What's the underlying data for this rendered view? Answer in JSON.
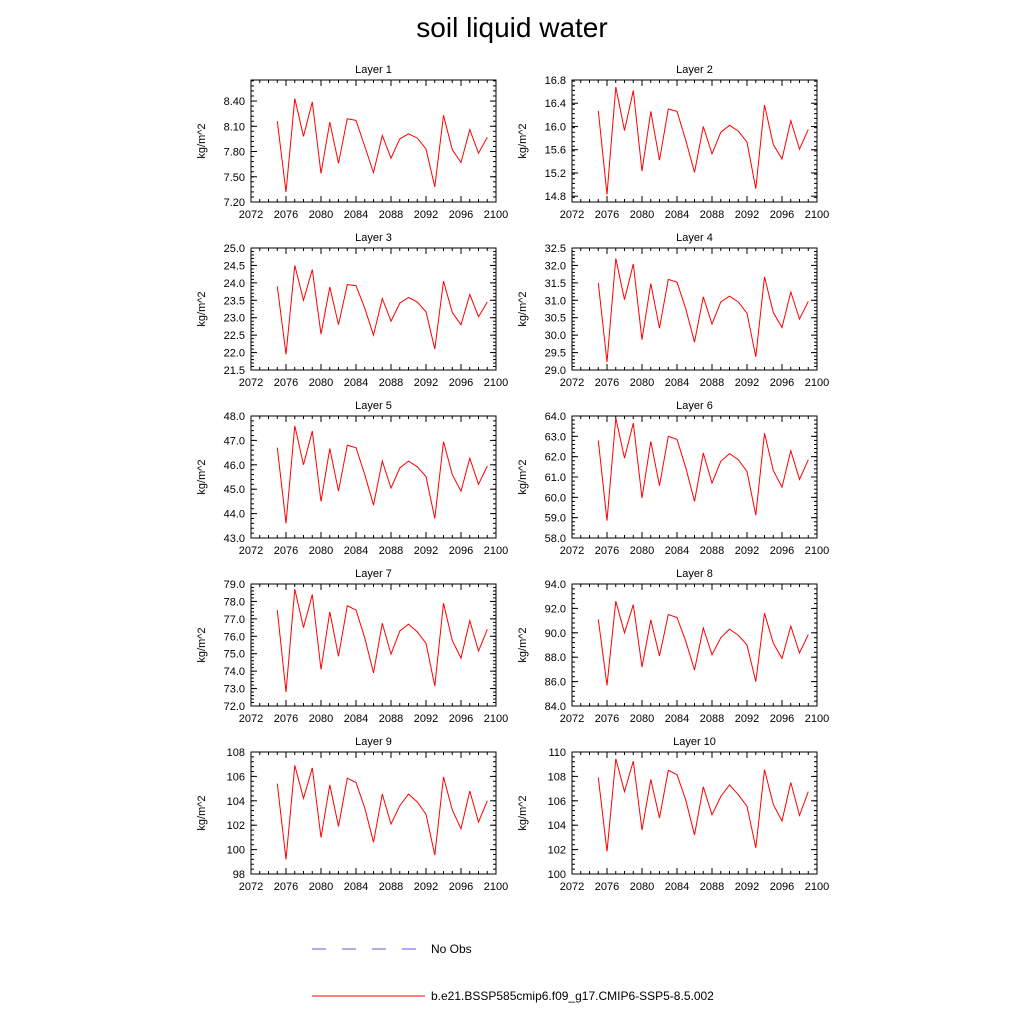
{
  "title": "soil liquid water",
  "legend": {
    "obs_label": "No Obs",
    "obs_color": "#5b5bd6",
    "model_label": "b.e21.BSSP585cmip6.f09_g17.CMIP6-SSP5-8.5.002",
    "model_color": "#ff0000"
  },
  "chart_data": [
    {
      "type": "line",
      "title": "Layer 1",
      "ylabel": "kg/m^2",
      "xlim": [
        2072,
        2100
      ],
      "ylim": [
        7.2,
        8.65
      ],
      "xticks": [
        2072,
        2076,
        2080,
        2084,
        2088,
        2092,
        2096,
        2100
      ],
      "yticks": [
        "7.20",
        "7.50",
        "7.80",
        "8.10",
        "8.40"
      ],
      "series": [
        {
          "x": [
            2075,
            2076,
            2077,
            2078,
            2079,
            2080,
            2081,
            2082,
            2083,
            2084,
            2085,
            2086,
            2087,
            2088,
            2089,
            2090,
            2091,
            2092,
            2093,
            2094,
            2095,
            2096,
            2097,
            2098,
            2099
          ],
          "values": [
            8.16,
            7.32,
            8.43,
            7.98,
            8.39,
            7.54,
            8.15,
            7.66,
            8.19,
            8.17,
            7.86,
            7.55,
            7.99,
            7.72,
            7.95,
            8.01,
            7.96,
            7.83,
            7.38,
            8.23,
            7.82,
            7.67,
            8.06,
            7.78,
            7.97
          ]
        }
      ]
    },
    {
      "type": "line",
      "title": "Layer 2",
      "ylabel": "kg/m^2",
      "xlim": [
        2072,
        2100
      ],
      "ylim": [
        14.7,
        16.8
      ],
      "xticks": [
        2072,
        2076,
        2080,
        2084,
        2088,
        2092,
        2096,
        2100
      ],
      "yticks": [
        "14.8",
        "15.2",
        "15.6",
        "16.0",
        "16.4",
        "16.8"
      ],
      "series": [
        {
          "x": [
            2075,
            2076,
            2077,
            2078,
            2079,
            2080,
            2081,
            2082,
            2083,
            2084,
            2085,
            2086,
            2087,
            2088,
            2089,
            2090,
            2091,
            2092,
            2093,
            2094,
            2095,
            2096,
            2097,
            2098,
            2099
          ],
          "values": [
            16.27,
            14.83,
            16.68,
            15.93,
            16.62,
            15.23,
            16.26,
            15.42,
            16.3,
            16.26,
            15.76,
            15.21,
            16.0,
            15.53,
            15.9,
            16.02,
            15.92,
            15.73,
            14.93,
            16.37,
            15.69,
            15.44,
            16.1,
            15.61,
            15.95
          ]
        }
      ]
    },
    {
      "type": "line",
      "title": "Layer 3",
      "ylabel": "kg/m^2",
      "xlim": [
        2072,
        2100
      ],
      "ylim": [
        21.5,
        25.0
      ],
      "xticks": [
        2072,
        2076,
        2080,
        2084,
        2088,
        2092,
        2096,
        2100
      ],
      "yticks": [
        "21.5",
        "22.0",
        "22.5",
        "23.0",
        "23.5",
        "24.0",
        "24.5",
        "25.0"
      ],
      "series": [
        {
          "x": [
            2075,
            2076,
            2077,
            2078,
            2079,
            2080,
            2081,
            2082,
            2083,
            2084,
            2085,
            2086,
            2087,
            2088,
            2089,
            2090,
            2091,
            2092,
            2093,
            2094,
            2095,
            2096,
            2097,
            2098,
            2099
          ],
          "values": [
            23.9,
            21.95,
            24.5,
            23.5,
            24.38,
            22.53,
            23.88,
            22.8,
            23.95,
            23.92,
            23.27,
            22.5,
            23.55,
            22.9,
            23.42,
            23.58,
            23.45,
            23.17,
            22.1,
            24.05,
            23.15,
            22.8,
            23.67,
            23.03,
            23.45
          ]
        }
      ]
    },
    {
      "type": "line",
      "title": "Layer 4",
      "ylabel": "kg/m^2",
      "xlim": [
        2072,
        2100
      ],
      "ylim": [
        29.0,
        32.5
      ],
      "xticks": [
        2072,
        2076,
        2080,
        2084,
        2088,
        2092,
        2096,
        2100
      ],
      "yticks": [
        "29.0",
        "29.5",
        "30.0",
        "30.5",
        "31.0",
        "31.5",
        "32.0",
        "32.5"
      ],
      "series": [
        {
          "x": [
            2075,
            2076,
            2077,
            2078,
            2079,
            2080,
            2081,
            2082,
            2083,
            2084,
            2085,
            2086,
            2087,
            2088,
            2089,
            2090,
            2091,
            2092,
            2093,
            2094,
            2095,
            2096,
            2097,
            2098,
            2099
          ],
          "values": [
            31.5,
            29.23,
            32.2,
            31.02,
            32.04,
            29.87,
            31.48,
            30.2,
            31.6,
            31.52,
            30.75,
            29.8,
            31.1,
            30.32,
            30.95,
            31.12,
            30.95,
            30.63,
            29.38,
            31.67,
            30.65,
            30.22,
            31.24,
            30.46,
            30.97
          ]
        }
      ]
    },
    {
      "type": "line",
      "title": "Layer 5",
      "ylabel": "kg/m^2",
      "xlim": [
        2072,
        2100
      ],
      "ylim": [
        43.0,
        48.0
      ],
      "xticks": [
        2072,
        2076,
        2080,
        2084,
        2088,
        2092,
        2096,
        2100
      ],
      "yticks": [
        "43.0",
        "44.0",
        "45.0",
        "46.0",
        "47.0",
        "48.0"
      ],
      "series": [
        {
          "x": [
            2075,
            2076,
            2077,
            2078,
            2079,
            2080,
            2081,
            2082,
            2083,
            2084,
            2085,
            2086,
            2087,
            2088,
            2089,
            2090,
            2091,
            2092,
            2093,
            2094,
            2095,
            2096,
            2097,
            2098,
            2099
          ],
          "values": [
            46.7,
            43.6,
            47.6,
            46.0,
            47.38,
            44.5,
            46.67,
            44.92,
            46.8,
            46.7,
            45.6,
            44.35,
            46.15,
            45.05,
            45.87,
            46.15,
            45.92,
            45.52,
            43.8,
            46.95,
            45.6,
            44.92,
            46.27,
            45.2,
            45.95
          ]
        }
      ]
    },
    {
      "type": "line",
      "title": "Layer 6",
      "ylabel": "kg/m^2",
      "xlim": [
        2072,
        2100
      ],
      "ylim": [
        58.0,
        64.0
      ],
      "xticks": [
        2072,
        2076,
        2080,
        2084,
        2088,
        2092,
        2096,
        2100
      ],
      "yticks": [
        "58.0",
        "59.0",
        "60.0",
        "61.0",
        "62.0",
        "63.0",
        "64.0"
      ],
      "series": [
        {
          "x": [
            2075,
            2076,
            2077,
            2078,
            2079,
            2080,
            2081,
            2082,
            2083,
            2084,
            2085,
            2086,
            2087,
            2088,
            2089,
            2090,
            2091,
            2092,
            2093,
            2094,
            2095,
            2096,
            2097,
            2098,
            2099
          ],
          "values": [
            62.8,
            58.85,
            63.9,
            61.93,
            63.65,
            59.97,
            62.75,
            60.57,
            63.0,
            62.85,
            61.45,
            59.8,
            62.18,
            60.7,
            61.77,
            62.15,
            61.85,
            61.27,
            59.12,
            63.15,
            61.32,
            60.5,
            62.3,
            60.88,
            61.85
          ]
        }
      ]
    },
    {
      "type": "line",
      "title": "Layer 7",
      "ylabel": "kg/m^2",
      "xlim": [
        2072,
        2100
      ],
      "ylim": [
        72.0,
        79.0
      ],
      "xticks": [
        2072,
        2076,
        2080,
        2084,
        2088,
        2092,
        2096,
        2100
      ],
      "yticks": [
        "72.0",
        "73.0",
        "74.0",
        "75.0",
        "76.0",
        "77.0",
        "78.0",
        "79.0"
      ],
      "series": [
        {
          "x": [
            2075,
            2076,
            2077,
            2078,
            2079,
            2080,
            2081,
            2082,
            2083,
            2084,
            2085,
            2086,
            2087,
            2088,
            2089,
            2090,
            2091,
            2092,
            2093,
            2094,
            2095,
            2096,
            2097,
            2098,
            2099
          ],
          "values": [
            77.5,
            72.8,
            78.7,
            76.5,
            78.4,
            74.1,
            77.4,
            74.85,
            77.75,
            77.5,
            75.9,
            73.9,
            76.75,
            74.97,
            76.3,
            76.7,
            76.25,
            75.6,
            73.15,
            77.9,
            75.75,
            74.75,
            76.9,
            75.15,
            76.4
          ]
        }
      ]
    },
    {
      "type": "line",
      "title": "Layer 8",
      "ylabel": "kg/m^2",
      "xlim": [
        2072,
        2100
      ],
      "ylim": [
        84.0,
        94.0
      ],
      "xticks": [
        2072,
        2076,
        2080,
        2084,
        2088,
        2092,
        2096,
        2100
      ],
      "yticks": [
        "84.0",
        "86.0",
        "88.0",
        "90.0",
        "92.0",
        "94.0"
      ],
      "series": [
        {
          "x": [
            2075,
            2076,
            2077,
            2078,
            2079,
            2080,
            2081,
            2082,
            2083,
            2084,
            2085,
            2086,
            2087,
            2088,
            2089,
            2090,
            2091,
            2092,
            2093,
            2094,
            2095,
            2096,
            2097,
            2098,
            2099
          ],
          "values": [
            91.1,
            85.7,
            92.6,
            90.0,
            92.3,
            87.2,
            91.05,
            88.1,
            91.5,
            91.25,
            89.3,
            86.95,
            90.4,
            88.2,
            89.6,
            90.3,
            89.8,
            89.0,
            86.0,
            91.6,
            89.15,
            87.9,
            90.55,
            88.35,
            89.85
          ]
        }
      ]
    },
    {
      "type": "line",
      "title": "Layer 9",
      "ylabel": "kg/m^2",
      "xlim": [
        2072,
        2100
      ],
      "ylim": [
        98.0,
        108.0
      ],
      "xticks": [
        2072,
        2076,
        2080,
        2084,
        2088,
        2092,
        2096,
        2100
      ],
      "yticks": [
        "98",
        "100",
        "102",
        "104",
        "106",
        "108"
      ],
      "series": [
        {
          "x": [
            2075,
            2076,
            2077,
            2078,
            2079,
            2080,
            2081,
            2082,
            2083,
            2084,
            2085,
            2086,
            2087,
            2088,
            2089,
            2090,
            2091,
            2092,
            2093,
            2094,
            2095,
            2096,
            2097,
            2098,
            2099
          ],
          "values": [
            105.4,
            99.2,
            106.9,
            104.2,
            106.7,
            101.0,
            105.3,
            101.9,
            105.85,
            105.5,
            103.4,
            100.6,
            104.55,
            102.1,
            103.6,
            104.55,
            103.9,
            102.9,
            99.55,
            105.95,
            103.25,
            101.7,
            104.8,
            102.25,
            104.0
          ]
        }
      ]
    },
    {
      "type": "line",
      "title": "Layer 10",
      "ylabel": "kg/m^2",
      "xlim": [
        2072,
        2100
      ],
      "ylim": [
        100.0,
        110.0
      ],
      "xticks": [
        2072,
        2076,
        2080,
        2084,
        2088,
        2092,
        2096,
        2100
      ],
      "yticks": [
        "100",
        "102",
        "104",
        "106",
        "108",
        "110"
      ],
      "series": [
        {
          "x": [
            2075,
            2076,
            2077,
            2078,
            2079,
            2080,
            2081,
            2082,
            2083,
            2084,
            2085,
            2086,
            2087,
            2088,
            2089,
            2090,
            2091,
            2092,
            2093,
            2094,
            2095,
            2096,
            2097,
            2098,
            2099
          ],
          "values": [
            107.9,
            101.85,
            109.45,
            106.75,
            109.25,
            103.6,
            107.75,
            104.6,
            108.5,
            108.15,
            106.05,
            103.2,
            107.15,
            104.85,
            106.35,
            107.3,
            106.5,
            105.55,
            102.15,
            108.55,
            105.7,
            104.35,
            107.5,
            104.8,
            106.75
          ]
        }
      ]
    }
  ]
}
